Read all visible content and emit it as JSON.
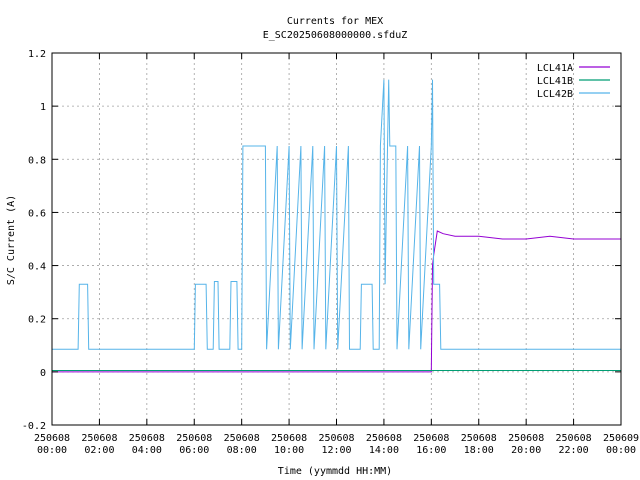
{
  "chart_data": {
    "type": "line",
    "title": "Currents for MEX",
    "subtitle": "E_SC20250608000000.sfduZ",
    "xlabel": "Time (yymmdd HH:MM)",
    "ylabel": "S/C Current (A)",
    "ylim": [
      -0.2,
      1.2
    ],
    "xlim_hours": [
      0,
      24
    ],
    "y_ticks": [
      "-0.2",
      "0",
      "0.2",
      "0.4",
      "0.6",
      "0.8",
      "1",
      "1.2"
    ],
    "x_ticks": [
      {
        "date": "250608",
        "time": "00:00"
      },
      {
        "date": "250608",
        "time": "02:00"
      },
      {
        "date": "250608",
        "time": "04:00"
      },
      {
        "date": "250608",
        "time": "06:00"
      },
      {
        "date": "250608",
        "time": "08:00"
      },
      {
        "date": "250608",
        "time": "10:00"
      },
      {
        "date": "250608",
        "time": "12:00"
      },
      {
        "date": "250608",
        "time": "14:00"
      },
      {
        "date": "250608",
        "time": "16:00"
      },
      {
        "date": "250608",
        "time": "18:00"
      },
      {
        "date": "250608",
        "time": "20:00"
      },
      {
        "date": "250608",
        "time": "22:00"
      },
      {
        "date": "250609",
        "time": "00:00"
      }
    ],
    "grid": true,
    "legend_position": "top-right",
    "series": [
      {
        "name": "LCL41A",
        "color": "#9400d3",
        "x": [
          0,
          16.0,
          16.05,
          16.1,
          16.25,
          16.5,
          17,
          18,
          19,
          20,
          21,
          22,
          23,
          24
        ],
        "y": [
          0,
          0,
          0.4,
          0.44,
          0.53,
          0.52,
          0.51,
          0.51,
          0.5,
          0.5,
          0.51,
          0.5,
          0.5,
          0.5
        ]
      },
      {
        "name": "LCL41B",
        "color": "#009e73",
        "x": [
          0,
          24
        ],
        "y": [
          0.005,
          0.005
        ]
      },
      {
        "name": "LCL42B",
        "color": "#56b4e9",
        "x": [
          0,
          1.1,
          1.15,
          1.5,
          1.55,
          6.0,
          6.05,
          6.5,
          6.55,
          6.8,
          6.85,
          7.0,
          7.05,
          7.5,
          7.55,
          7.8,
          7.85,
          8.0,
          8.05,
          9.0,
          9.05,
          9.5,
          9.55,
          10.0,
          10.05,
          10.5,
          10.55,
          11.0,
          11.05,
          11.5,
          11.55,
          12.0,
          12.05,
          12.5,
          12.55,
          13.0,
          13.05,
          13.5,
          13.55,
          13.8,
          13.85,
          14.0,
          14.05,
          14.2,
          14.25,
          14.5,
          14.55,
          15.0,
          15.05,
          15.5,
          15.55,
          16.0,
          16.05,
          16.1,
          16.15,
          16.35,
          16.4,
          24
        ],
        "y": [
          0.085,
          0.085,
          0.33,
          0.33,
          0.085,
          0.085,
          0.33,
          0.33,
          0.085,
          0.085,
          0.34,
          0.34,
          0.085,
          0.085,
          0.34,
          0.34,
          0.085,
          0.085,
          0.85,
          0.85,
          0.085,
          0.85,
          0.085,
          0.85,
          0.085,
          0.85,
          0.085,
          0.85,
          0.085,
          0.85,
          0.085,
          0.85,
          0.085,
          0.85,
          0.085,
          0.085,
          0.33,
          0.33,
          0.085,
          0.085,
          0.85,
          1.1,
          0.33,
          1.1,
          0.85,
          0.85,
          0.085,
          0.85,
          0.085,
          0.85,
          0.085,
          0.85,
          1.1,
          0.33,
          0.33,
          0.33,
          0.085,
          0.085
        ]
      }
    ]
  }
}
